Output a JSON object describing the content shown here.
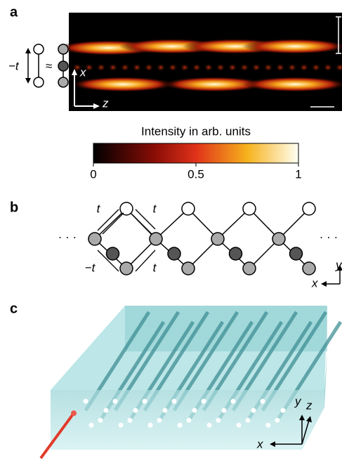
{
  "panels": [
    {
      "label": "a",
      "texts": [
        "−t",
        "≈",
        "x",
        "z"
      ]
    },
    {
      "label": "b",
      "texts": [
        "t",
        "t",
        "−t",
        "t",
        "· · ·",
        "· · ·",
        "y",
        "x"
      ]
    },
    {
      "label": "c",
      "texts": [
        "y",
        "z",
        "x"
      ]
    }
  ],
  "colorbar": {
    "label": "Intensity in arb. units",
    "lim": [
      0,
      1
    ],
    "ticks": [
      0,
      0.5,
      1
    ]
  }
}
